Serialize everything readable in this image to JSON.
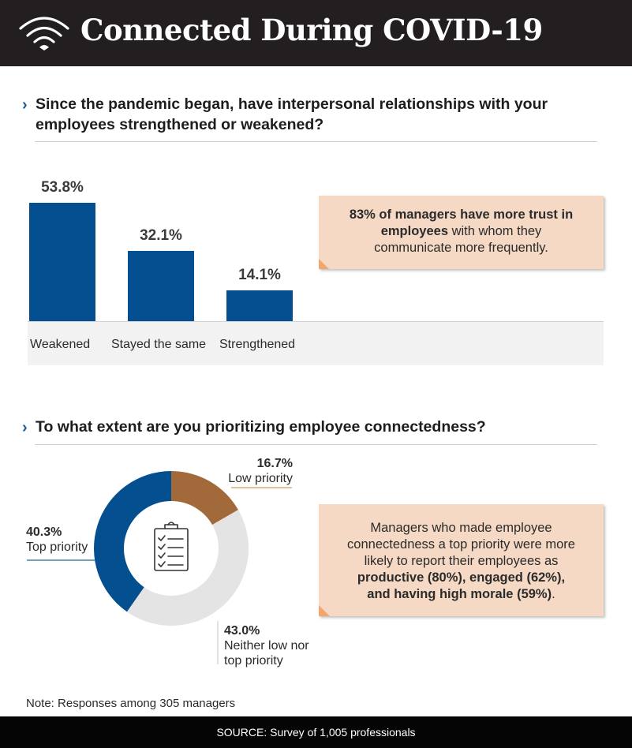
{
  "header": {
    "title": "Connected During COVID-19",
    "icon": "wifi-icon"
  },
  "colors": {
    "header_bg": "#231f20",
    "bar": "#034f90",
    "top_priority": "#034f90",
    "low_priority": "#a2693b",
    "neither": "#e4e4e4",
    "callout_bg": "#f5d9c4",
    "callout_fold": "#f1a66e"
  },
  "section1": {
    "question_line1": "Since the pandemic began, have interpersonal relationships with your",
    "question_line2": "employees strengthened or weakened?",
    "callout": {
      "bold_line1": "83% of managers have more trust in",
      "bold_part2": "employees",
      "rest_line2": " with whom they",
      "line3": "communicate more frequently."
    }
  },
  "section2": {
    "question": "To what extent are you prioritizing employee connectedness?",
    "callout": {
      "line1": "Managers who made employee",
      "line2": "connectedness a top priority were more",
      "line3": "likely to report their employees as",
      "bold_line4": "productive (80%), engaged (62%),",
      "bold_line5": "and having high morale (59%)",
      "line5_end": "."
    }
  },
  "chart_data": [
    {
      "type": "bar",
      "categories": [
        "Weakened",
        "Stayed the same",
        "Strengthened"
      ],
      "values": [
        53.8,
        32.1,
        14.1
      ],
      "value_labels": [
        "53.8%",
        "32.1%",
        "14.1%"
      ],
      "ylim": [
        0,
        53.8
      ]
    },
    {
      "type": "pie",
      "style": "donut",
      "slices": [
        {
          "value": 16.7,
          "pct": "16.7%",
          "name": "Low priority",
          "color": "#a2693b"
        },
        {
          "value": 43.0,
          "pct": "43.0%",
          "name_line1": "Neither low nor",
          "name_line2": "top priority",
          "color": "#e4e4e4"
        },
        {
          "value": 40.3,
          "pct": "40.3%",
          "name": "Top priority",
          "color": "#034f90"
        }
      ],
      "center_icon": "clipboard-checklist-icon"
    }
  ],
  "note": "Note: Responses among 305 managers",
  "source": "SOURCE: Survey of 1,005 professionals"
}
